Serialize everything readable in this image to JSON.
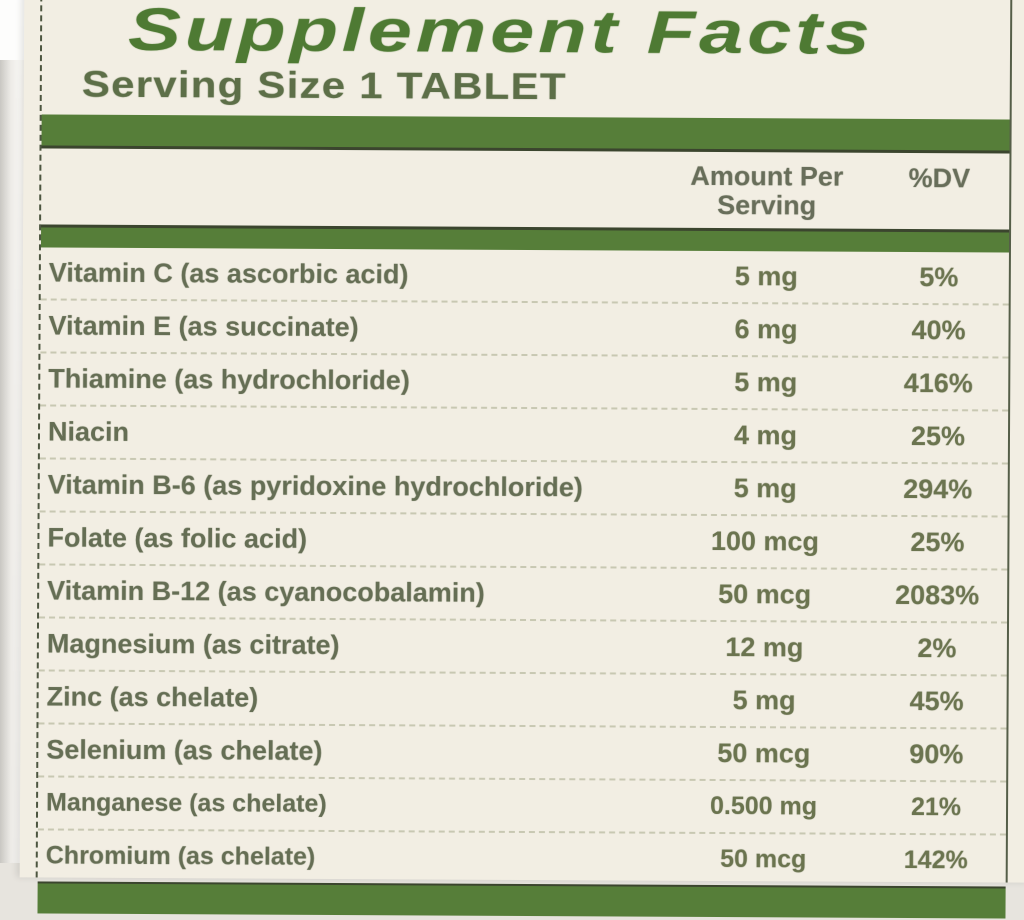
{
  "label": {
    "title": "Supplement Facts",
    "serving_size": "Serving Size 1 TABLET"
  },
  "header": {
    "amount_line1": "Amount Per",
    "amount_line2": "Serving",
    "dv": "%DV"
  },
  "rows": [
    {
      "name": "Vitamin C (as ascorbic acid)",
      "amount": "5 mg",
      "dv": "5%"
    },
    {
      "name": "Vitamin E (as succinate)",
      "amount": "6 mg",
      "dv": "40%"
    },
    {
      "name": "Thiamine (as hydrochloride)",
      "amount": "5 mg",
      "dv": "416%"
    },
    {
      "name": "Niacin",
      "amount": "4 mg",
      "dv": "25%"
    },
    {
      "name": "Vitamin B-6 (as pyridoxine hydrochloride)",
      "amount": "5 mg",
      "dv": "294%"
    },
    {
      "name": "Folate (as folic acid)",
      "amount": "100 mcg",
      "dv": "25%"
    },
    {
      "name": "Vitamin B-12 (as cyanocobalamin)",
      "amount": "50 mcg",
      "dv": "2083%"
    },
    {
      "name": "Magnesium (as citrate)",
      "amount": "12 mg",
      "dv": "2%"
    },
    {
      "name": "Zinc (as chelate)",
      "amount": "5 mg",
      "dv": "45%"
    },
    {
      "name": "Selenium (as chelate)",
      "amount": "50 mcg",
      "dv": "90%"
    },
    {
      "name": "Manganese (as chelate)",
      "amount": "0.500 mg",
      "dv": "21%"
    },
    {
      "name": "Chromium (as chelate)",
      "amount": "50 mcg",
      "dv": "142%"
    }
  ],
  "colors": {
    "bar_green": "#567e39",
    "title_green": "#4e7a33",
    "text_olive": "#656e54",
    "label_bg": "#f2eee3",
    "edge_dark": "#3b452e"
  }
}
